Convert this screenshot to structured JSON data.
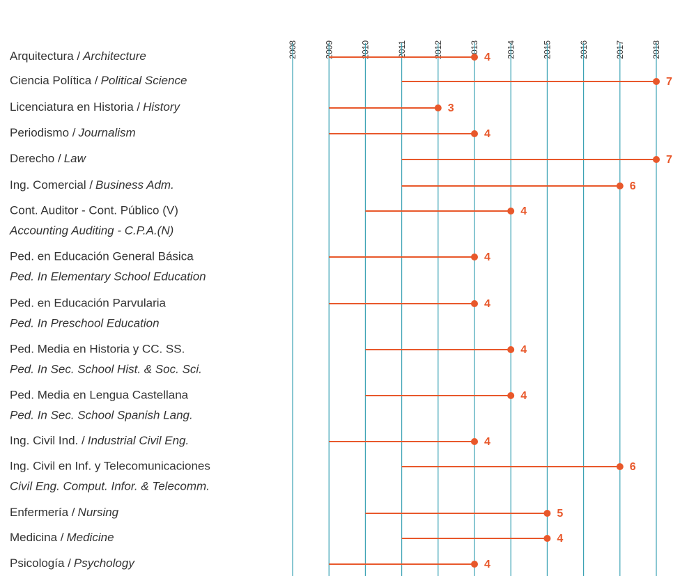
{
  "chart_data": {
    "type": "range",
    "xlim": [
      2008,
      2018
    ],
    "xticks": [
      2008,
      2009,
      2010,
      2011,
      2012,
      2013,
      2014,
      2015,
      2016,
      2017,
      2018
    ],
    "grid": true,
    "color": "#e8582b",
    "grid_color": "#3ba2b4",
    "categories": [
      [
        "Arquitectura /",
        "Architecture"
      ],
      [
        "Ciencia Política /",
        "Political Science"
      ],
      [
        "Licenciatura en Historia /",
        "History"
      ],
      [
        "Periodismo /",
        "Journalism"
      ],
      [
        "Derecho /",
        "Law"
      ],
      [
        "Ing. Comercial /",
        "Business Adm."
      ],
      [
        "Cont. Auditor - Cont. Público (V)",
        "Accounting Auditing - C.P.A.(N)"
      ],
      [
        "Ped. en Educación General Básica",
        "Ped. In Elementary School Education"
      ],
      [
        "Ped. en Educación Parvularia",
        "Ped. In Preschool Education"
      ],
      [
        "Ped. Media en Historia y CC. SS.",
        "Ped. In Sec. School Hist. & Soc. Sci."
      ],
      [
        "Ped. Media en Lengua Castellana",
        "Ped. In Sec. School Spanish Lang."
      ],
      [
        "Ing. Civil Ind. /",
        "Industrial Civil Eng."
      ],
      [
        "Ing. Civil en Inf. y Telecomunicaciones",
        "Civil Eng. Comput. Infor. & Telecomm."
      ],
      [
        "Enfermería /",
        "Nursing"
      ],
      [
        "Medicina /",
        "Medicine"
      ],
      [
        "Psicología /",
        "Psychology"
      ]
    ],
    "start": [
      2009,
      2011,
      2009,
      2009,
      2011,
      2011,
      2010,
      2009,
      2009,
      2010,
      2010,
      2009,
      2011,
      2010,
      2011,
      2009
    ],
    "end": [
      2013,
      2018,
      2012,
      2013,
      2018,
      2017,
      2014,
      2013,
      2013,
      2014,
      2014,
      2013,
      2017,
      2015,
      2015,
      2013
    ],
    "values": [
      4,
      7,
      3,
      4,
      7,
      6,
      4,
      4,
      4,
      4,
      4,
      4,
      6,
      5,
      4,
      4
    ]
  }
}
